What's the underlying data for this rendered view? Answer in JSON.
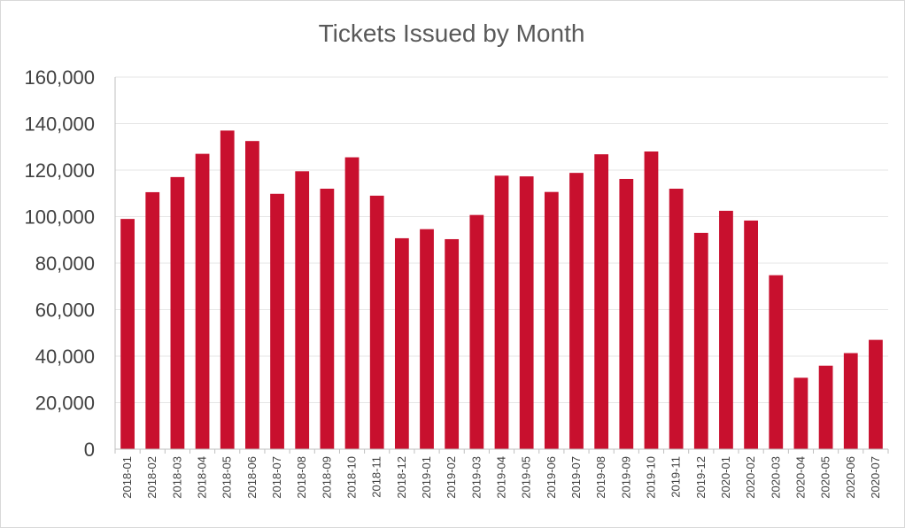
{
  "chart_data": {
    "type": "bar",
    "title": "Tickets Issued by Month",
    "xlabel": "",
    "ylabel": "",
    "ylim": [
      0,
      160000
    ],
    "yticks": [
      0,
      20000,
      40000,
      60000,
      80000,
      100000,
      120000,
      140000,
      160000
    ],
    "ytick_labels": [
      "0",
      "20,000",
      "40,000",
      "60,000",
      "80,000",
      "100,000",
      "120,000",
      "140,000",
      "160,000"
    ],
    "grid": true,
    "legend": "none",
    "bar_color": "#c8102e",
    "categories": [
      "2018-01",
      "2018-02",
      "2018-03",
      "2018-04",
      "2018-05",
      "2018-06",
      "2018-07",
      "2018-08",
      "2018-09",
      "2018-10",
      "2018-11",
      "2018-12",
      "2019-01",
      "2019-02",
      "2019-03",
      "2019-04",
      "2019-05",
      "2019-06",
      "2019-07",
      "2019-08",
      "2019-09",
      "2019-10",
      "2019-11",
      "2019-12",
      "2020-01",
      "2020-02",
      "2020-03",
      "2020-04",
      "2020-05",
      "2020-06",
      "2020-07"
    ],
    "values": [
      99000,
      110500,
      117000,
      127000,
      137000,
      132500,
      109800,
      119500,
      112000,
      125500,
      109000,
      90700,
      94600,
      90300,
      100700,
      117600,
      117300,
      110600,
      118800,
      126800,
      116200,
      128000,
      112000,
      93000,
      102500,
      98300,
      74800,
      30700,
      35900,
      41300,
      47000
    ]
  }
}
